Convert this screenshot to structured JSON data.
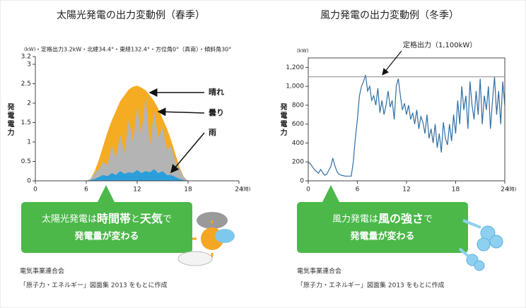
{
  "chart_data": [
    {
      "type": "area",
      "title": "太陽光発電の出力変動例（春季）",
      "subtitle": "・定格出力3.2kW・北緯34.4°・東経132.4°・方位角0°（真南）・傾斜角30°",
      "y_label": "発電電力",
      "y_unit": "(kW)",
      "x_unit": "(時)",
      "x": [
        6,
        6.5,
        7,
        7.5,
        8,
        8.5,
        9,
        9.5,
        10,
        10.5,
        11,
        11.5,
        12,
        12.5,
        13,
        13.5,
        14,
        14.5,
        15,
        15.5,
        16,
        16.5,
        17,
        17.5,
        18
      ],
      "series": [
        {
          "name": "晴れ",
          "color": "#f5ab22",
          "values": [
            0,
            0.05,
            0.25,
            0.55,
            0.9,
            1.25,
            1.55,
            1.8,
            2.05,
            2.2,
            2.35,
            2.42,
            2.45,
            2.4,
            2.33,
            2.2,
            2.05,
            1.85,
            1.6,
            1.35,
            1.05,
            0.7,
            0.35,
            0.1,
            0
          ]
        },
        {
          "name": "曇り",
          "color": "#b4b4b4",
          "values": [
            0,
            0.05,
            0.2,
            0.3,
            0.5,
            0.4,
            0.9,
            0.6,
            1.2,
            0.7,
            1.6,
            1.0,
            1.9,
            1.2,
            2.2,
            0.9,
            1.8,
            1.1,
            1.4,
            0.8,
            0.9,
            0.5,
            0.3,
            0.1,
            0
          ]
        },
        {
          "name": "雨",
          "color": "#2a9fdc",
          "values": [
            0,
            0.02,
            0.05,
            0.1,
            0.15,
            0.12,
            0.2,
            0.15,
            0.25,
            0.18,
            0.22,
            0.2,
            0.28,
            0.2,
            0.25,
            0.22,
            0.3,
            0.2,
            0.25,
            0.15,
            0.15,
            0.1,
            0.05,
            0.02,
            0
          ]
        }
      ],
      "xlim": [
        0,
        24
      ],
      "xticks": [
        0,
        6,
        12,
        18,
        24
      ],
      "ylim": [
        0,
        3.2
      ],
      "yticks": [
        0,
        0.5,
        1,
        1.5,
        2,
        2.5,
        3,
        3.2
      ]
    },
    {
      "type": "line",
      "title": "風力発電の出力変動例（冬季）",
      "y_label": "発電電力",
      "y_unit": "(kW)",
      "x_unit": "(時)",
      "x": [
        0,
        0.25,
        0.5,
        0.75,
        1,
        1.25,
        1.5,
        1.75,
        2,
        2.25,
        2.5,
        2.75,
        3,
        3.25,
        3.5,
        3.75,
        4,
        4.25,
        4.5,
        4.75,
        5,
        5.25,
        5.5,
        5.75,
        6,
        6.25,
        6.5,
        6.75,
        7,
        7.25,
        7.5,
        7.75,
        8,
        8.25,
        8.5,
        8.75,
        9,
        9.25,
        9.5,
        9.75,
        10,
        10.25,
        10.5,
        10.75,
        11,
        11.25,
        11.5,
        11.75,
        12,
        12.25,
        12.5,
        12.75,
        13,
        13.25,
        13.5,
        13.75,
        14,
        14.25,
        14.5,
        14.75,
        15,
        15.25,
        15.5,
        15.75,
        16,
        16.25,
        16.5,
        16.75,
        17,
        17.25,
        17.5,
        17.75,
        18,
        18.25,
        18.5,
        18.75,
        19,
        19.25,
        19.5,
        19.75,
        20,
        20.25,
        20.5,
        20.75,
        21,
        21.25,
        21.5,
        21.75,
        22,
        22.25,
        22.5,
        22.75,
        23,
        23.25,
        23.5,
        23.75,
        24
      ],
      "series": [
        {
          "name": "風力",
          "color": "#2f6ea5",
          "values": [
            200,
            180,
            150,
            120,
            100,
            80,
            120,
            90,
            60,
            70,
            110,
            150,
            240,
            160,
            100,
            70,
            60,
            55,
            50,
            50,
            50,
            50,
            200,
            450,
            650,
            900,
            1000,
            1050,
            1120,
            950,
            1000,
            850,
            900,
            800,
            980,
            720,
            850,
            700,
            800,
            950,
            780,
            850,
            650,
            1000,
            1080,
            900,
            750,
            820,
            700,
            800,
            650,
            720,
            600,
            750,
            550,
            680,
            620,
            500,
            700,
            450,
            550,
            400,
            600,
            350,
            500,
            300,
            620,
            450,
            380,
            600,
            420,
            700,
            500,
            850,
            600,
            1000,
            750,
            900,
            550,
            1050,
            800,
            650,
            950,
            700,
            1080,
            600,
            900,
            750,
            1000,
            550,
            850,
            1100,
            700,
            950,
            600,
            1050,
            800
          ]
        }
      ],
      "reference_line": {
        "value": 1100,
        "label": "定格出力（1,100kW）"
      },
      "xlim": [
        0,
        24
      ],
      "xticks": [
        0,
        6,
        12,
        18,
        24
      ],
      "ylim": [
        0,
        1300
      ],
      "yticks": [
        0,
        200,
        400,
        600,
        800,
        {
          "value": 1000,
          "label": "1,000"
        },
        {
          "value": 1200,
          "label": "1,200"
        }
      ]
    }
  ],
  "callouts": [
    {
      "line1": [
        "太陽光発電は",
        "時間帯",
        "と",
        "天気",
        "で"
      ],
      "line2": "発電量が変わる"
    },
    {
      "line1": [
        "風力発電は",
        "風の強さ",
        "で"
      ],
      "line2": "発電量が変わる"
    }
  ],
  "sources": [
    [
      "電気事業連合会",
      "「原子力・エネルギー」図面集 2013 をもとに作成"
    ],
    [
      "電気事業連合会",
      "「原子力・エネルギー」図面集 2013 をもとに作成"
    ]
  ]
}
